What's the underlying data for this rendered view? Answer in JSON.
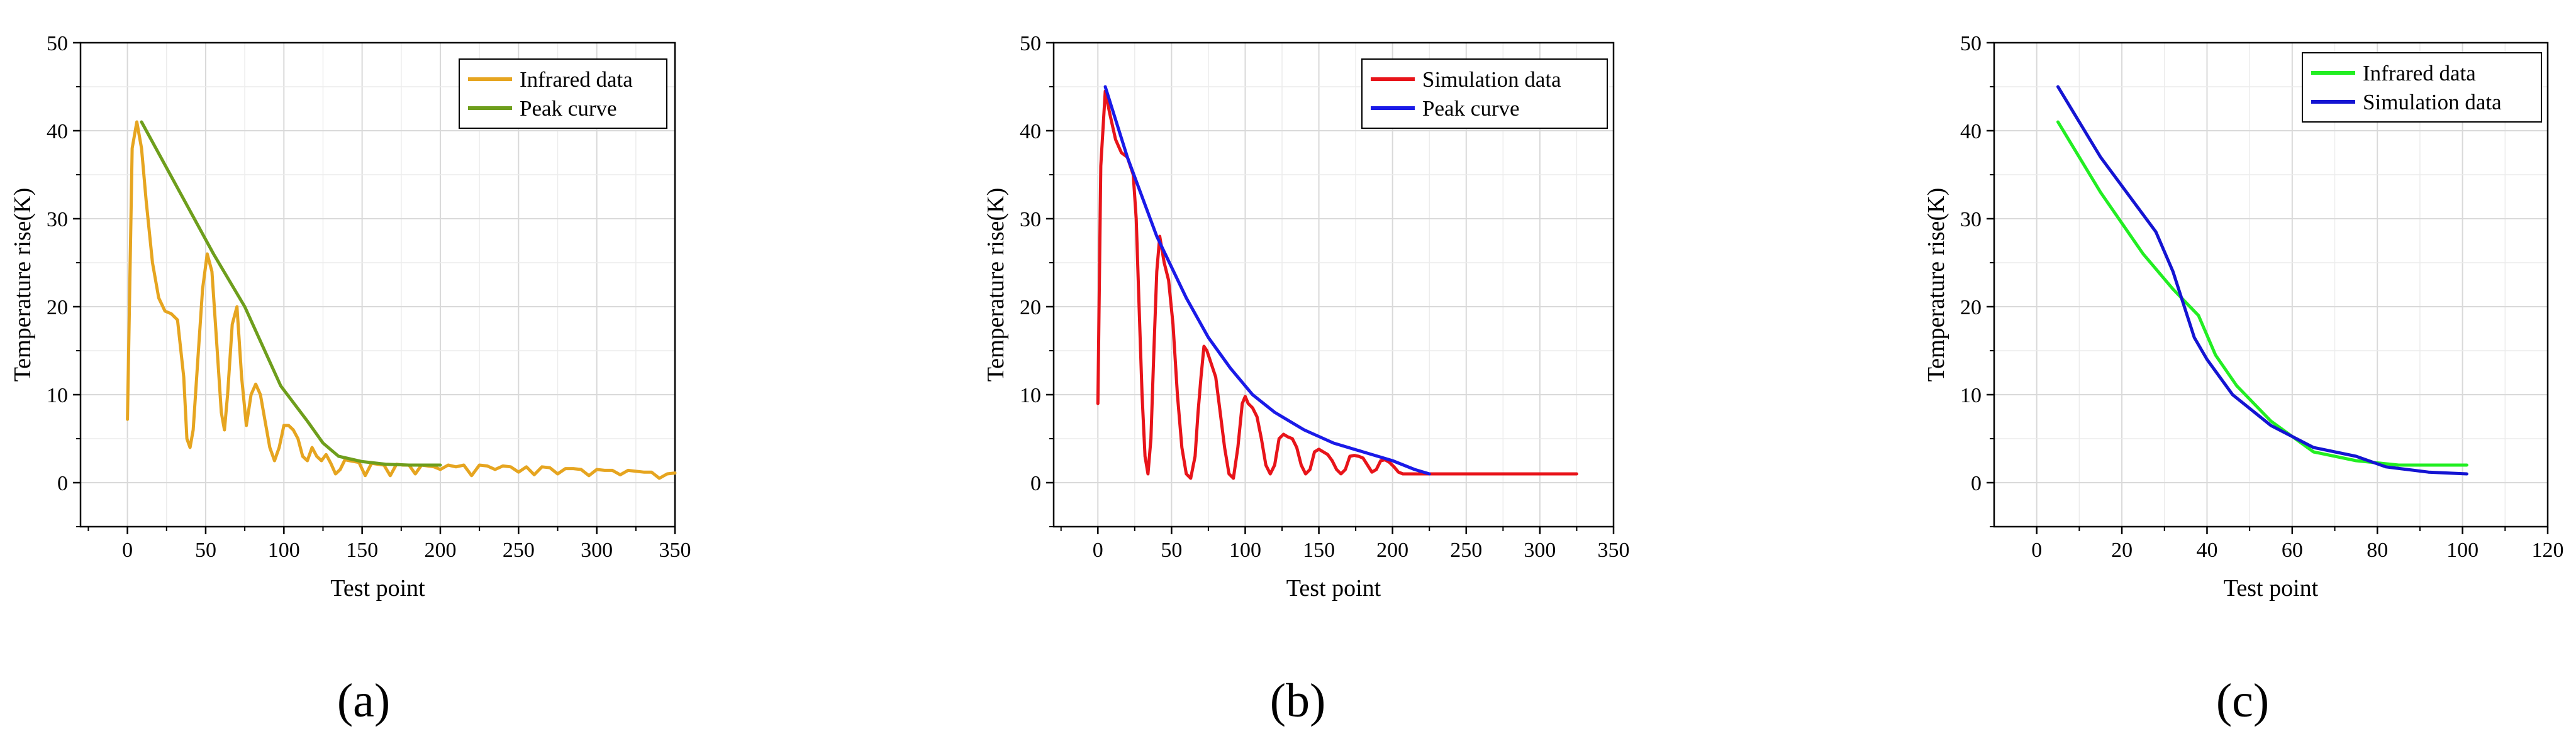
{
  "figure": {
    "panel_labels": [
      "(a)",
      "(b)",
      "(c)"
    ]
  },
  "chart_data": [
    {
      "id": "a",
      "type": "line",
      "title": "",
      "xlabel": "Test point",
      "ylabel": "Temperature rise(K)",
      "xlim": [
        -30,
        350
      ],
      "ylim": [
        -5,
        50
      ],
      "xticks": [
        0,
        50,
        100,
        150,
        200,
        250,
        300,
        350
      ],
      "yticks": [
        0,
        10,
        20,
        30,
        40,
        50
      ],
      "grid": true,
      "legend_position": "top-right",
      "series": [
        {
          "name": "Infrared data",
          "color": "#E6A520",
          "x": [
            0,
            3,
            6,
            9,
            12,
            16,
            20,
            24,
            28,
            32,
            36,
            38,
            40,
            42,
            45,
            48,
            51,
            54,
            57,
            60,
            62,
            64,
            67,
            70,
            73,
            76,
            79,
            82,
            85,
            88,
            91,
            94,
            97,
            100,
            103,
            106,
            109,
            112,
            115,
            118,
            121,
            124,
            127,
            130,
            133,
            136,
            139,
            142,
            145,
            148,
            152,
            156,
            160,
            164,
            168,
            172,
            176,
            180,
            184,
            188,
            192,
            196,
            200,
            205,
            210,
            215,
            220,
            225,
            230,
            235,
            240,
            245,
            250,
            255,
            260,
            265,
            270,
            275,
            280,
            285,
            290,
            295,
            300,
            305,
            310,
            315,
            320,
            325,
            330,
            335,
            340,
            345,
            350
          ],
          "values": [
            7.2,
            38,
            41,
            38,
            32,
            25,
            21,
            19.5,
            19.2,
            18.5,
            12,
            5,
            4,
            6,
            14,
            22,
            26,
            24,
            16,
            8,
            6,
            10,
            18,
            20,
            12,
            6.5,
            10,
            11.2,
            10,
            7,
            4,
            2.5,
            4,
            6.5,
            6.5,
            6,
            5,
            3,
            2.5,
            4,
            3,
            2.5,
            3.2,
            2.2,
            1,
            1.5,
            2.6,
            2.5,
            2.4,
            2.3,
            0.8,
            2.2,
            2.1,
            2,
            0.8,
            2.1,
            2,
            2,
            1,
            2,
            1.9,
            1.8,
            1.5,
            2,
            1.8,
            2,
            0.8,
            2,
            1.9,
            1.5,
            1.9,
            1.8,
            1.2,
            1.8,
            0.9,
            1.8,
            1.7,
            1,
            1.6,
            1.6,
            1.5,
            0.8,
            1.5,
            1.4,
            1.4,
            0.9,
            1.4,
            1.3,
            1.2,
            1.2,
            0.5,
            1.0,
            1.1
          ]
        },
        {
          "name": "Peak curve",
          "color": "#6E9E1C",
          "x": [
            9,
            55,
            75,
            98,
            115,
            125,
            135,
            150,
            165,
            180,
            200
          ],
          "values": [
            41,
            26,
            20,
            11,
            7,
            4.5,
            3,
            2.4,
            2.1,
            2,
            2
          ]
        }
      ]
    },
    {
      "id": "b",
      "type": "line",
      "title": "",
      "xlabel": "Test point",
      "ylabel": "Temperature rise(K)",
      "xlim": [
        -30,
        350
      ],
      "ylim": [
        -5,
        50
      ],
      "xticks": [
        0,
        50,
        100,
        150,
        200,
        250,
        300,
        350
      ],
      "yticks": [
        0,
        10,
        20,
        30,
        40,
        50
      ],
      "grid": true,
      "legend_position": "top-right",
      "series": [
        {
          "name": "Simulation data",
          "color": "#E8141A",
          "x": [
            0,
            2,
            5,
            8,
            12,
            16,
            20,
            24,
            26,
            28,
            30,
            32,
            34,
            36,
            38,
            40,
            42,
            45,
            48,
            51,
            54,
            57,
            60,
            63,
            66,
            68,
            70,
            72,
            74,
            77,
            80,
            83,
            86,
            89,
            92,
            95,
            98,
            100,
            102,
            105,
            108,
            111,
            114,
            117,
            120,
            123,
            126,
            129,
            132,
            135,
            138,
            141,
            144,
            147,
            150,
            153,
            156,
            159,
            162,
            165,
            168,
            171,
            174,
            177,
            180,
            183,
            186,
            189,
            192,
            195,
            198,
            201,
            204,
            207,
            210,
            213,
            216,
            219,
            222,
            226,
            250,
            280,
            300,
            325
          ],
          "values": [
            9,
            36,
            44.5,
            42,
            39,
            37.5,
            37,
            35,
            30,
            20,
            10,
            3,
            1,
            5,
            15,
            24,
            28,
            25,
            23,
            18,
            10,
            4,
            1,
            0.5,
            3,
            8,
            12,
            15.5,
            15,
            13.5,
            12,
            8,
            4,
            1,
            0.5,
            4,
            9,
            9.8,
            9,
            8.5,
            7.5,
            5,
            2,
            1,
            2,
            5,
            5.5,
            5.2,
            5,
            4,
            2,
            1,
            1.5,
            3.5,
            3.8,
            3.5,
            3.2,
            2.5,
            1.5,
            1,
            1.5,
            3,
            3.1,
            3,
            2.8,
            2,
            1.2,
            1.5,
            2.5,
            2.6,
            2.3,
            1.8,
            1.2,
            1,
            1,
            1,
            1,
            1,
            1,
            1,
            1,
            1,
            1,
            1
          ]
        },
        {
          "name": "Peak curve",
          "color": "#1A1AE8",
          "x": [
            5,
            20,
            40,
            60,
            75,
            90,
            105,
            120,
            140,
            160,
            180,
            200,
            215,
            225
          ],
          "values": [
            45,
            37,
            28,
            21,
            16.5,
            13,
            10,
            8,
            6,
            4.5,
            3.5,
            2.5,
            1.5,
            1
          ]
        }
      ]
    },
    {
      "id": "c",
      "type": "line",
      "title": "",
      "xlabel": "Test point",
      "ylabel": "Temperature rise(K)",
      "xlim": [
        -10,
        120
      ],
      "ylim": [
        -5,
        50
      ],
      "xticks": [
        0,
        20,
        40,
        60,
        80,
        100,
        120
      ],
      "yticks": [
        0,
        10,
        20,
        30,
        40,
        50
      ],
      "grid": true,
      "legend_position": "top-right",
      "series": [
        {
          "name": "Infrared data",
          "color": "#22EE22",
          "x": [
            5,
            15,
            25,
            32,
            38,
            42,
            47,
            55,
            65,
            75,
            85,
            95,
            101
          ],
          "values": [
            41,
            33,
            26,
            22,
            19,
            14.5,
            11,
            7,
            3.5,
            2.5,
            2,
            2,
            2
          ]
        },
        {
          "name": "Simulation data",
          "color": "#1414D2",
          "x": [
            5,
            15,
            28,
            32,
            37,
            40,
            46,
            55,
            65,
            75,
            82,
            92,
            101
          ],
          "values": [
            45,
            37,
            28.5,
            24,
            16.5,
            14,
            10,
            6.5,
            4,
            3,
            1.8,
            1.2,
            1
          ]
        }
      ]
    }
  ]
}
